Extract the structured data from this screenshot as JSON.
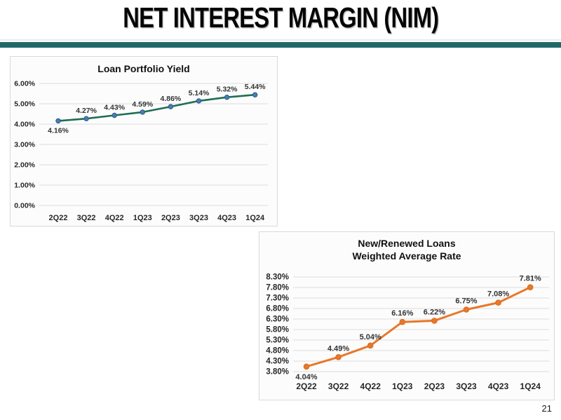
{
  "slide": {
    "title": "NET INTEREST MARGIN (NIM)",
    "page_number": "21"
  },
  "colors": {
    "divider_teal": "#1e6968",
    "grid_line": "#dcdcdc",
    "tick_text": "#262626",
    "data_label_text": "#333333"
  },
  "chart_data": [
    {
      "type": "line",
      "title": "Loan Portfolio Yield",
      "categories": [
        "2Q22",
        "3Q22",
        "4Q22",
        "1Q23",
        "2Q23",
        "3Q23",
        "4Q23",
        "1Q24"
      ],
      "series": [
        {
          "name": "Loan Portfolio Yield",
          "values": [
            4.16,
            4.27,
            4.43,
            4.59,
            4.86,
            5.14,
            5.32,
            5.44
          ]
        }
      ],
      "ylim": [
        0,
        6
      ],
      "ytick_step": 1,
      "tick_format": "percent2",
      "grid": true,
      "legend": "none",
      "line_color": "#1e6e55",
      "marker_fill": "#4a7db0",
      "marker_stroke": "#2a5c85"
    },
    {
      "type": "line",
      "title": "New/Renewed Loans",
      "subtitle": "Weighted Average Rate",
      "categories": [
        "2Q22",
        "3Q22",
        "4Q22",
        "1Q23",
        "2Q23",
        "3Q23",
        "4Q23",
        "1Q24"
      ],
      "series": [
        {
          "name": "Weighted Average Rate",
          "values": [
            4.04,
            4.49,
            5.04,
            6.16,
            6.22,
            6.75,
            7.08,
            7.81
          ]
        }
      ],
      "ylim": [
        3.8,
        8.3
      ],
      "ytick_step": 0.5,
      "tick_format": "percent2",
      "grid": true,
      "legend": "none",
      "line_color": "#e8782a",
      "marker_fill": "#e8782a",
      "marker_stroke": "#d96c1e"
    }
  ]
}
